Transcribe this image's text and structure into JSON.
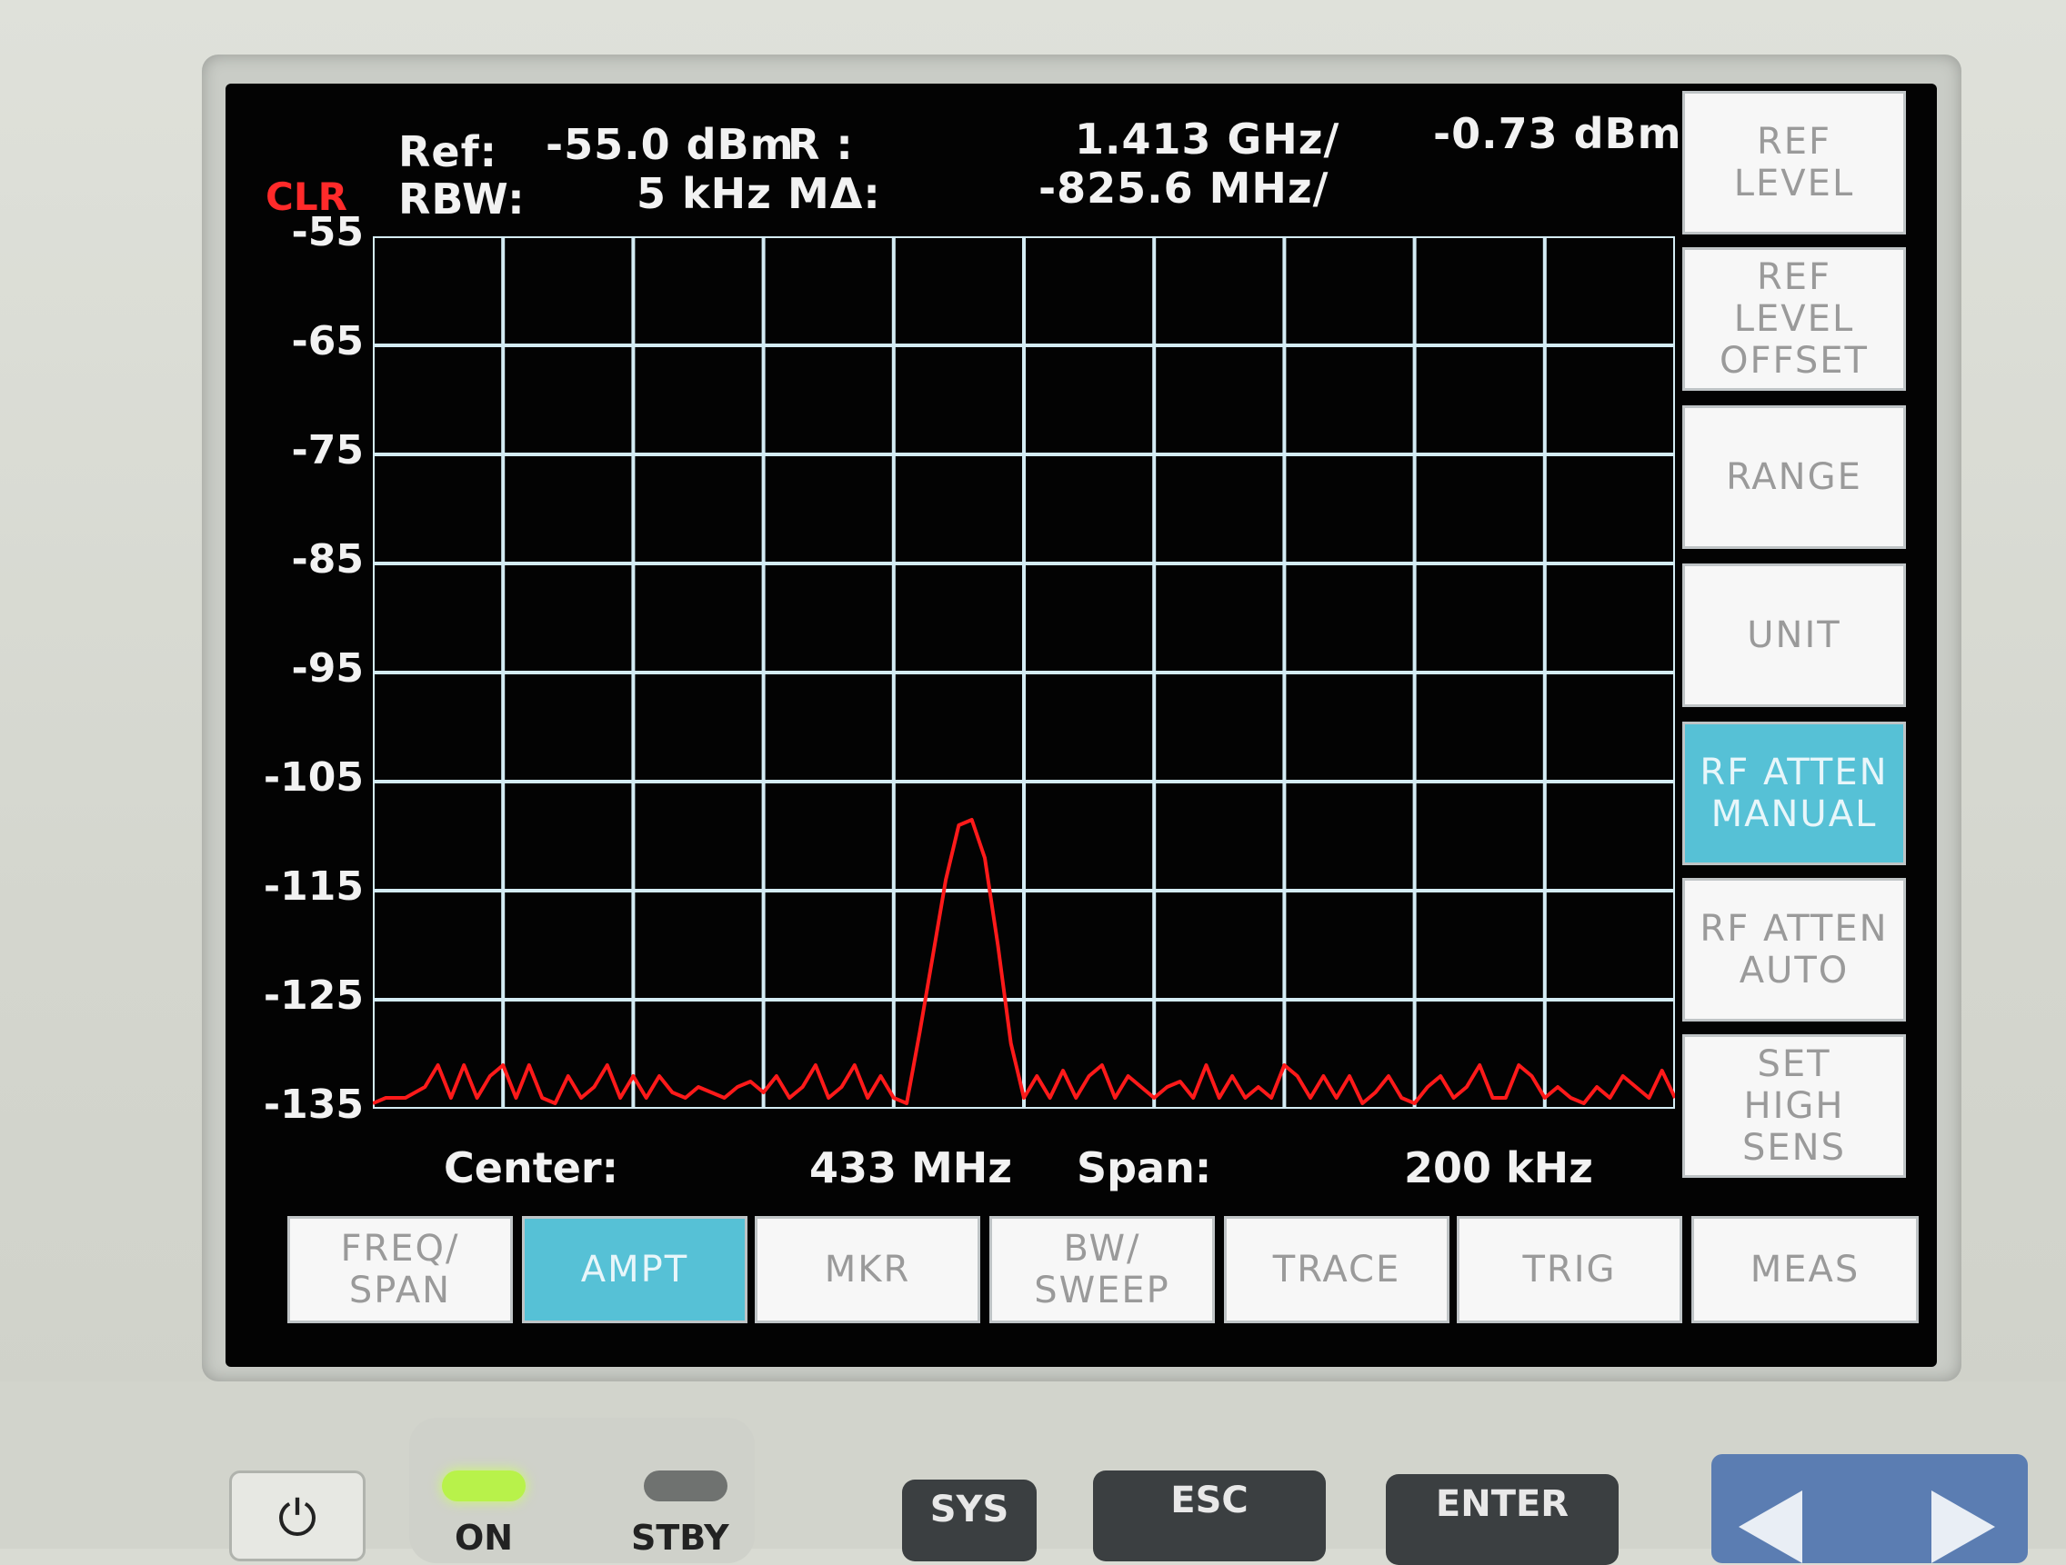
{
  "header": {
    "clr": "CLR",
    "ref_label": "Ref:",
    "ref_value": "-55.0 dBm",
    "r_label": "R :",
    "r_freq": "1.413 GHz/",
    "r_level": "-0.73 dBm",
    "rbw_label": "RBW:",
    "rbw_value": "5 kHz",
    "mdelta_label": "MΔ:",
    "mdelta_freq": "-825.6 MHz/"
  },
  "footer": {
    "center_label": "Center:",
    "center_value": "433 MHz",
    "span_label": "Span:",
    "span_value": "200 kHz"
  },
  "softkeys": [
    {
      "label": "REF\nLEVEL",
      "active": false
    },
    {
      "label": "REF\nLEVEL\nOFFSET",
      "active": false
    },
    {
      "label": "RANGE",
      "active": false
    },
    {
      "label": "UNIT",
      "active": false
    },
    {
      "label": "RF ATTEN\nMANUAL",
      "active": true
    },
    {
      "label": "RF ATTEN\nAUTO",
      "active": false
    },
    {
      "label": "SET\nHIGH\nSENS",
      "active": false
    }
  ],
  "menu": [
    {
      "label": "FREQ/\nSPAN",
      "active": false
    },
    {
      "label": "AMPT",
      "active": true
    },
    {
      "label": "MKR",
      "active": false
    },
    {
      "label": "BW/\nSWEEP",
      "active": false
    },
    {
      "label": "TRACE",
      "active": false
    },
    {
      "label": "TRIG",
      "active": false
    },
    {
      "label": "MEAS",
      "active": false
    }
  ],
  "hardware": {
    "on_label": "ON",
    "stby_label": "STBY",
    "sys_label": "SYS",
    "esc_label": "ESC",
    "enter_label": "ENTER"
  },
  "colors": {
    "trace": "#ff1a1a",
    "grid": "#d4ecf4",
    "active_key": "#56c1d6",
    "screen_bg": "#030303"
  },
  "chart_data": {
    "type": "line",
    "xlabel": "",
    "ylabel": "",
    "ylim": [
      -135,
      -55
    ],
    "y_ticks": [
      "-55",
      "-65",
      "-75",
      "-85",
      "-95",
      "-105",
      "-115",
      "-125",
      "-135"
    ],
    "x_center_mhz": 433,
    "x_span_khz": 200,
    "xlim_khz": [
      -100,
      100
    ],
    "grid": true,
    "series": [
      {
        "x": [
          -100,
          -98,
          -95,
          -92,
          -90,
          -88,
          -86,
          -84,
          -82,
          -80,
          -78,
          -76,
          -74,
          -72,
          -70,
          -68,
          -66,
          -64,
          -62,
          -60,
          -58,
          -56,
          -54,
          -52,
          -50,
          -48,
          -46,
          -44,
          -42,
          -40,
          -38,
          -36,
          -34,
          -32,
          -30,
          -28,
          -26,
          -24,
          -22,
          -20,
          -18,
          -16,
          -14,
          -12,
          -10,
          -8,
          -6,
          -4,
          -2,
          0,
          2,
          4,
          6,
          8,
          10,
          12,
          14,
          16,
          18,
          20,
          22,
          24,
          26,
          28,
          30,
          32,
          34,
          36,
          38,
          40,
          42,
          44,
          46,
          48,
          50,
          52,
          54,
          56,
          58,
          60,
          62,
          64,
          66,
          68,
          70,
          72,
          74,
          76,
          78,
          80,
          82,
          84,
          86,
          88,
          90,
          92,
          94,
          96,
          98,
          100
        ],
        "values": [
          -134.5,
          -134,
          -134,
          -133,
          -131,
          -134,
          -131,
          -134,
          -132,
          -131,
          -134,
          -131,
          -134,
          -134.5,
          -132,
          -134,
          -133,
          -131,
          -134,
          -132,
          -134,
          -132,
          -133.5,
          -134,
          -133,
          -133.5,
          -134,
          -133,
          -132.5,
          -133.5,
          -132,
          -134,
          -133,
          -131,
          -134,
          -133,
          -131,
          -134,
          -132,
          -134,
          -134.5,
          -128,
          -121,
          -114,
          -109,
          -108.5,
          -112,
          -120,
          -129,
          -134,
          -132,
          -134,
          -131.5,
          -134,
          -132,
          -131,
          -134,
          -132,
          -133,
          -134,
          -133,
          -132.5,
          -134,
          -131,
          -134,
          -132,
          -134,
          -133,
          -134,
          -131,
          -132,
          -134,
          -132,
          -134,
          -132,
          -134.5,
          -133.5,
          -132,
          -134,
          -134.5,
          -133,
          -132,
          -134,
          -133,
          -131,
          -134,
          -134,
          -131,
          -132,
          -134,
          -133,
          -134,
          -134.5,
          -133,
          -134,
          -132,
          -133,
          -134,
          -131.5,
          -134
        ]
      }
    ]
  }
}
